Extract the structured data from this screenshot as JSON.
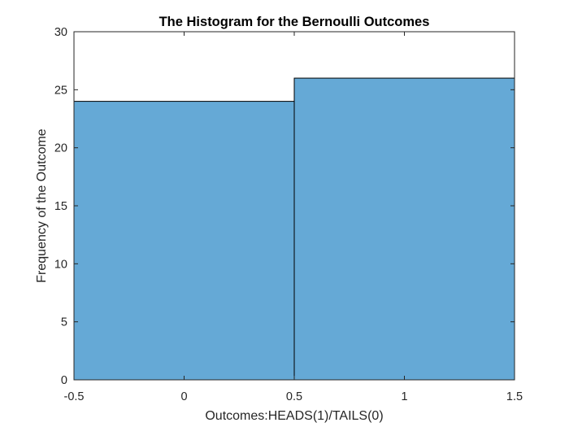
{
  "chart_data": {
    "type": "bar",
    "title": "The Histogram for the Bernoulli Outcomes",
    "xlabel": "Outcomes:HEADS(1)/TAILS(0)",
    "ylabel": "Frequency of the Outcome",
    "xlim": [
      -0.5,
      1.5
    ],
    "ylim": [
      0,
      30
    ],
    "x_ticks": [
      "-0.5",
      "0",
      "0.5",
      "1",
      "1.5"
    ],
    "y_ticks": [
      "0",
      "5",
      "10",
      "15",
      "20",
      "25",
      "30"
    ],
    "bins": [
      {
        "from": -0.5,
        "to": 0.5,
        "value": 24
      },
      {
        "from": 0.5,
        "to": 1.5,
        "value": 26
      }
    ],
    "bar_color": "#65a9d6",
    "edge_color": "#000000",
    "grid": false
  }
}
